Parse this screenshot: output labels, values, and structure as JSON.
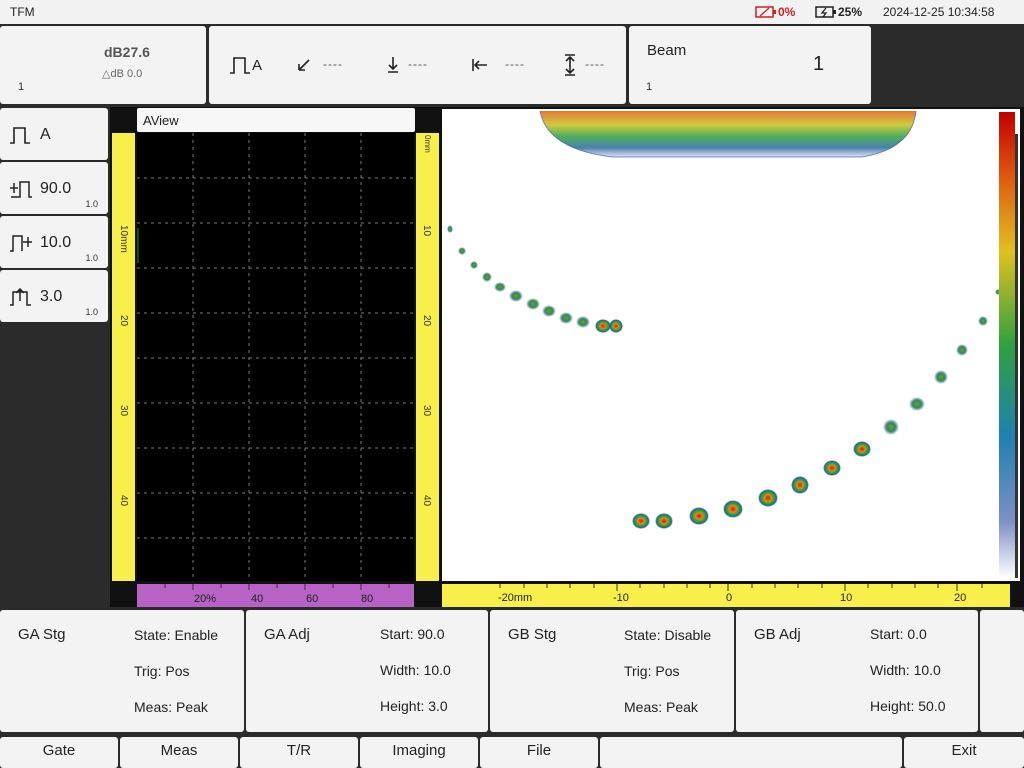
{
  "status": {
    "app": "TFM",
    "battery_left": "0%",
    "battery_right": "25%",
    "datetime": "2024-12-25 10:34:58"
  },
  "gain": {
    "db": "dB27.6",
    "delta": "△dB 0.0",
    "step": "1"
  },
  "toolbar": {
    "gate_label": "A",
    "readout1": "----",
    "readout2": "----",
    "readout3": "----",
    "readout4": "----"
  },
  "beam": {
    "label": "Beam",
    "value": "1",
    "step": "1"
  },
  "side": [
    {
      "label": "A",
      "step": "",
      "icon": "gate-icon"
    },
    {
      "label": "90.0",
      "step": "1.0",
      "icon": "gate-start-icon"
    },
    {
      "label": "10.0",
      "step": "1.0",
      "icon": "gate-width-icon"
    },
    {
      "label": "3.0",
      "step": "1.0",
      "icon": "gate-height-icon"
    }
  ],
  "aview": {
    "title": "AView",
    "depth_ticks": [
      "10mm",
      "20",
      "30",
      "40"
    ],
    "amp_ticks": [
      "20%",
      "40",
      "60",
      "80"
    ],
    "mid_ticks": [
      "0mm",
      "10",
      "20",
      "30",
      "40"
    ]
  },
  "image": {
    "x_ticks": [
      "-20mm",
      "-10",
      "0",
      "10",
      "20"
    ]
  },
  "ga_stg": {
    "title": "GA Stg",
    "state": "State: Enable",
    "trig": "Trig: Pos",
    "meas": "Meas: Peak"
  },
  "ga_adj": {
    "title": "GA Adj",
    "start": "Start:  90.0",
    "width": "Width:  10.0",
    "height": "Height:  3.0"
  },
  "gb_stg": {
    "title": "GB Stg",
    "state": "State: Disable",
    "trig": "Trig: Pos",
    "meas": "Meas: Peak"
  },
  "gb_adj": {
    "title": "GB Adj",
    "start": "Start:  0.0",
    "width": "Width:  10.0",
    "height": "Height:  50.0"
  },
  "menu": [
    "Gate",
    "Meas",
    "T/R",
    "Imaging",
    "File",
    "Exit"
  ],
  "colors": {
    "ruler_yellow": "#f8ef4a",
    "ruler_purple": "#b763c6",
    "battery_low": "#d12020"
  }
}
